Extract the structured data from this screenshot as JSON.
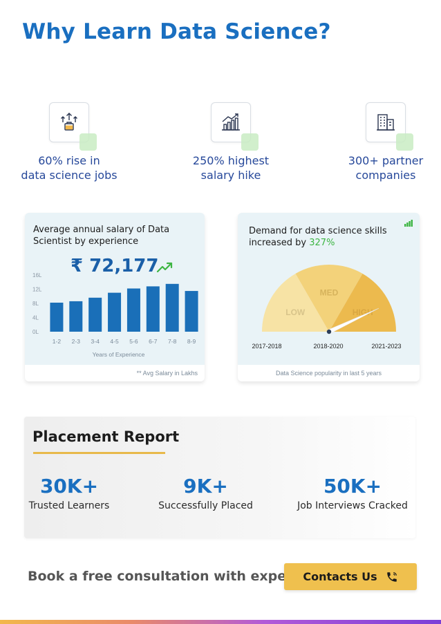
{
  "page": {
    "title": "Why Learn Data Science?"
  },
  "stats": [
    {
      "icon": "growth-arrows-briefcase-icon",
      "line1": "60% rise in",
      "line2": "data science jobs"
    },
    {
      "icon": "bar-chart-rising-icon",
      "line1": "250% highest",
      "line2": "salary hike"
    },
    {
      "icon": "office-building-icon",
      "line1": "300+ partner",
      "line2": "companies"
    }
  ],
  "salary_card": {
    "title_line1": "Average annual salary of Data",
    "title_line2": "Scientist by experience",
    "value": "₹ 72,177",
    "footnote": "** Avg Salary in Lakhs",
    "chart_data": {
      "type": "bar",
      "categories": [
        "1-2",
        "2-3",
        "3-4",
        "4-5",
        "5-6",
        "6-7",
        "7-8",
        "8-9"
      ],
      "values": [
        8.2,
        8.6,
        9.6,
        11.0,
        12.2,
        12.8,
        13.5,
        11.5
      ],
      "ylabels": [
        "16L",
        "12L",
        "8L",
        "4L",
        "0L"
      ],
      "yticks": [
        16,
        12,
        8,
        4,
        0
      ],
      "ylim": [
        0,
        16
      ],
      "xlabel": "Years of Experience",
      "bar_color": "#1a6fb8"
    }
  },
  "demand_card": {
    "title_line1": "Demand for data science skills",
    "title_prefix": "increased by ",
    "title_accent": "327%",
    "footer": "Data Science popularity in last 5 years",
    "gauge": {
      "segments": [
        {
          "label": "LOW",
          "color": "#f7e3a5",
          "label_color": "#d8c48a"
        },
        {
          "label": "MED",
          "color": "#f3d27a",
          "label_color": "#d6b35c"
        },
        {
          "label": "HIGH",
          "color": "#ecba4e",
          "label_color": "#d9a640"
        }
      ],
      "years": [
        "2017-2018",
        "2018-2020",
        "2021-2023"
      ],
      "level": 0.86
    }
  },
  "placement": {
    "title": "Placement Report",
    "metrics": [
      {
        "value": "30K+",
        "label": "Trusted Learners"
      },
      {
        "value": "9K+",
        "label": "Successfully Placed"
      },
      {
        "value": "50K+",
        "label": "Job Interviews Cracked"
      }
    ]
  },
  "cta": {
    "text": "Book a free consultation with expert",
    "button_label": "Contacts Us",
    "button_icon": "phone-icon"
  },
  "colors": {
    "brand_blue": "#1a6fc0",
    "accent_yellow": "#efc04e",
    "green": "#3db543"
  }
}
